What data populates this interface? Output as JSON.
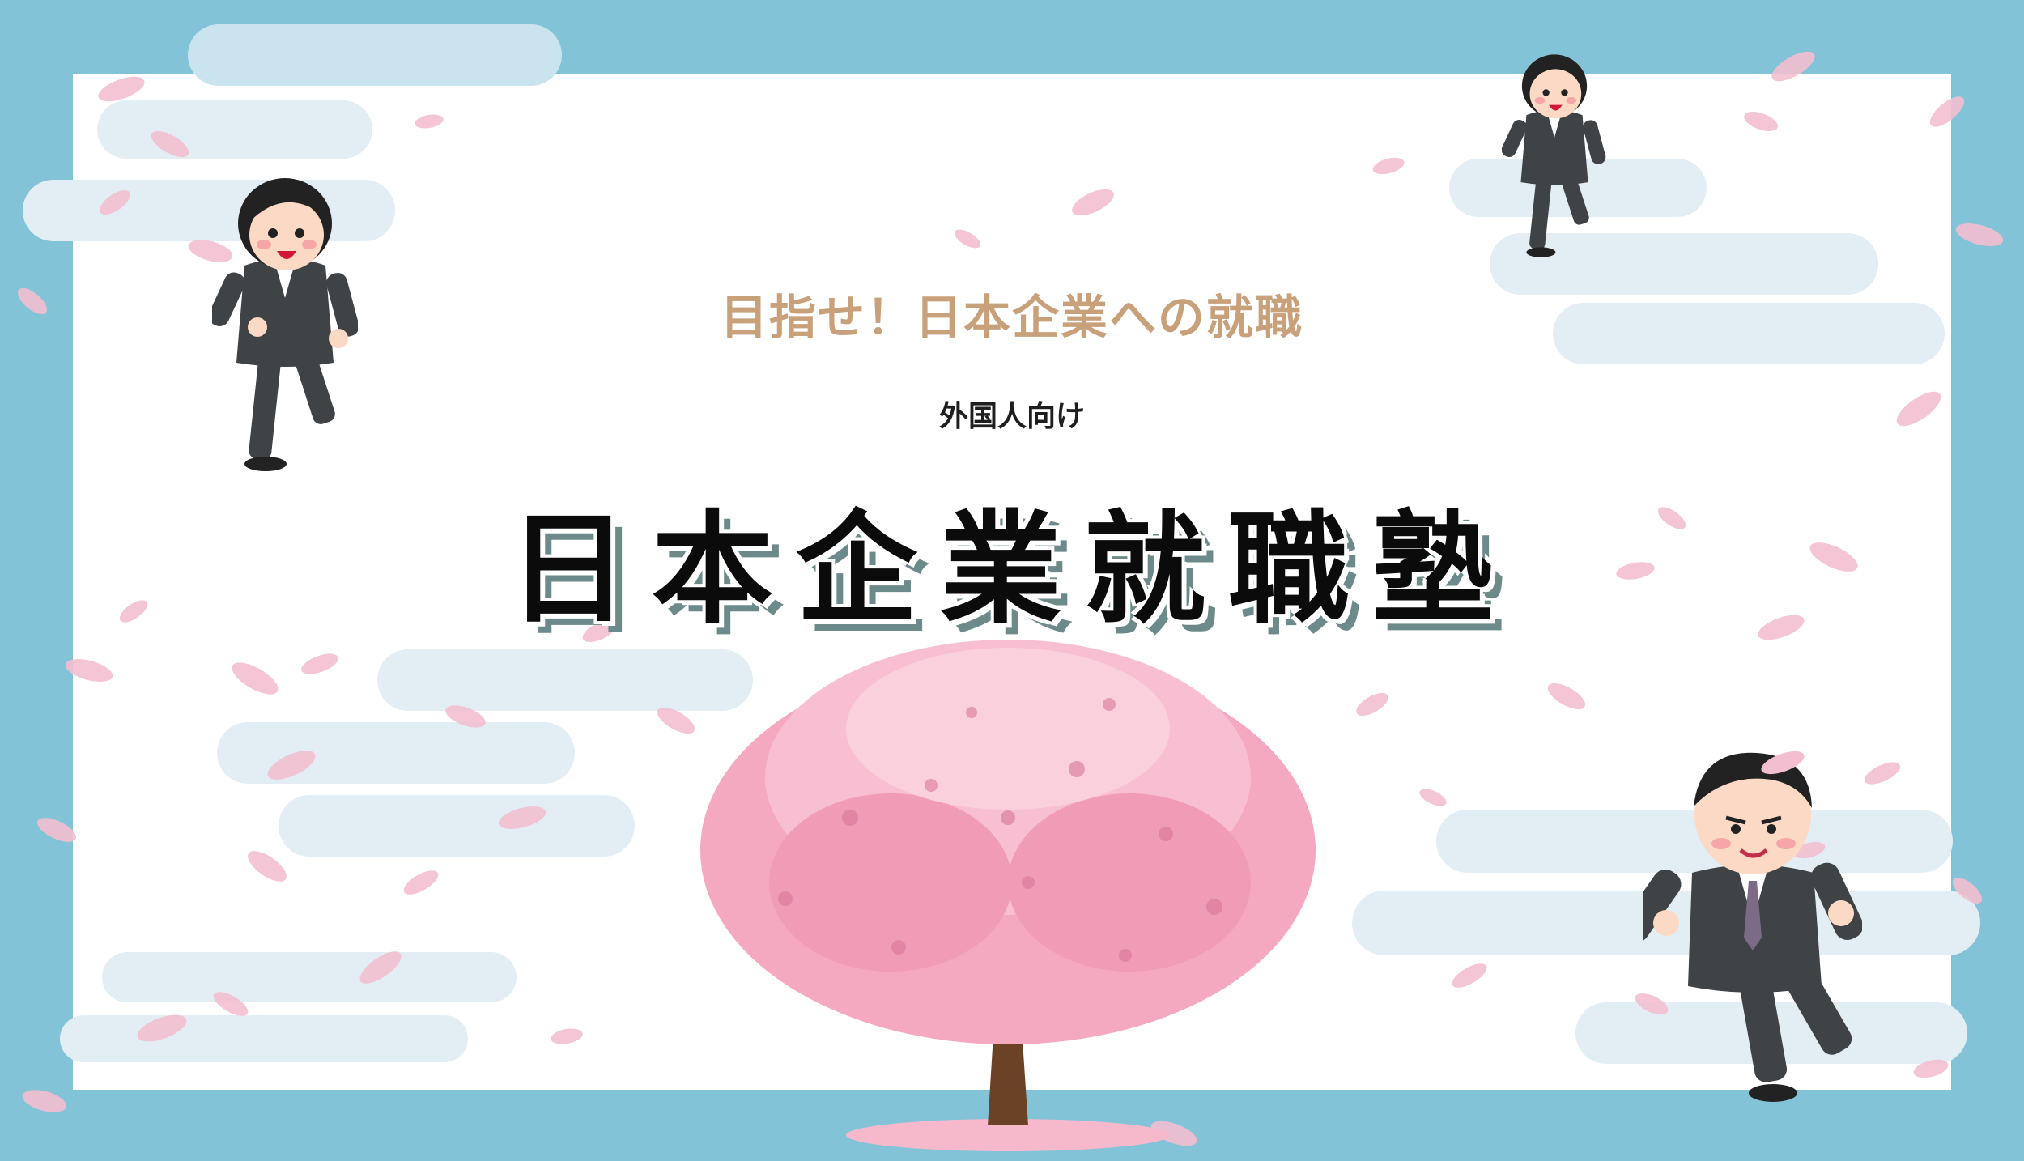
{
  "banner": {
    "subtitle": "目指せ！日本企業への就職",
    "kicker": "外国人向け",
    "title": "日本企業就職塾"
  },
  "colors": {
    "frame": "#83c3d8",
    "panel": "#ffffff",
    "cloud": "#e2eef3",
    "petal": "#f3bfd0",
    "subtitle": "#c8a07a",
    "title": "#0b0b0b",
    "title_shadow": "#6c8a8a",
    "blossom": "#f4a9c0",
    "trunk": "#6b4226",
    "suit": "#404346"
  },
  "illustrations": [
    "cherry-blossom-tree",
    "running-businesswoman",
    "running-businesswoman",
    "running-businessman",
    "cherry-petals",
    "clouds"
  ]
}
